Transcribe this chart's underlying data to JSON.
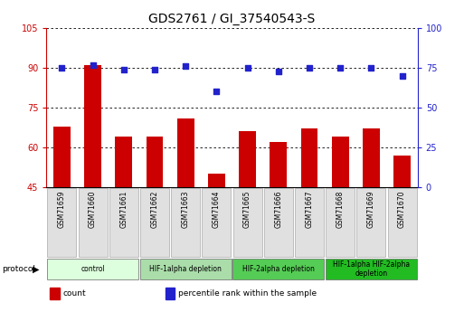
{
  "title": "GDS2761 / GI_37540543-S",
  "samples": [
    "GSM71659",
    "GSM71660",
    "GSM71661",
    "GSM71662",
    "GSM71663",
    "GSM71664",
    "GSM71665",
    "GSM71666",
    "GSM71667",
    "GSM71668",
    "GSM71669",
    "GSM71670"
  ],
  "count_values": [
    68,
    91,
    64,
    64,
    71,
    50,
    66,
    62,
    67,
    64,
    67,
    57
  ],
  "percentile_values": [
    75,
    77,
    74,
    74,
    76,
    60,
    75,
    73,
    75,
    75,
    75,
    70
  ],
  "ylim_left": [
    45,
    105
  ],
  "ylim_right": [
    0,
    100
  ],
  "yticks_left": [
    45,
    60,
    75,
    90,
    105
  ],
  "yticks_right": [
    0,
    25,
    50,
    75,
    100
  ],
  "bar_color": "#CC0000",
  "dot_color": "#2222CC",
  "protocol_groups": [
    {
      "label": "control",
      "start": 0,
      "end": 2,
      "color": "#ddffdd"
    },
    {
      "label": "HIF-1alpha depletion",
      "start": 3,
      "end": 5,
      "color": "#aaddaa"
    },
    {
      "label": "HIF-2alpha depletion",
      "start": 6,
      "end": 8,
      "color": "#55cc55"
    },
    {
      "label": "HIF-1alpha HIF-2alpha\ndepletion",
      "start": 9,
      "end": 11,
      "color": "#22bb22"
    }
  ],
  "tick_label_color_left": "#CC0000",
  "tick_label_color_right": "#2222CC",
  "title_fontsize": 10,
  "legend_items": [
    {
      "label": "count",
      "color": "#CC0000"
    },
    {
      "label": "percentile rank within the sample",
      "color": "#2222CC"
    }
  ],
  "bg_color": "#ffffff"
}
